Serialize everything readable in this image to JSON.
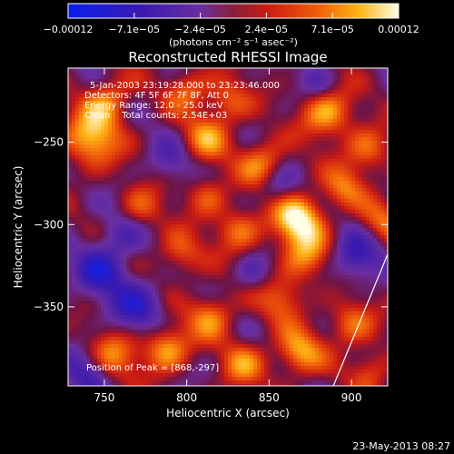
{
  "chart_data": {
    "type": "heatmap",
    "title": "Reconstructed RHESSI Image",
    "xlabel": "Heliocentric X (arcsec)",
    "ylabel": "Heliocentric Y (arcsec)",
    "xlim": [
      728,
      922
    ],
    "ylim": [
      -398,
      -205
    ],
    "x_ticks": [
      750,
      800,
      850,
      900
    ],
    "x_tick_labels": [
      "750",
      "800",
      "850",
      "900"
    ],
    "y_ticks": [
      -250,
      -300,
      -350
    ],
    "y_tick_labels": [
      "−250",
      "−300",
      "−350"
    ],
    "colorbar": {
      "range": [
        -0.00012,
        0.00012
      ],
      "tick_labels": [
        "−0.00012",
        "−7.1e−05",
        "−2.4e−05",
        "2.4e−05",
        "7.1e−05",
        "0.00012"
      ],
      "units": "(photons cm⁻² s⁻¹ asec⁻²)",
      "colormap": "blue-purple-red-orange-yellow-white"
    },
    "annotations": [
      "5-Jan-2003 23:19:28.000 to 23:23:46.000",
      "Detectors: 4F 5F 6F 7F 8F, Att 0",
      "Energy Range: 12.0 - 25.0 keV",
      "Clean    Total counts: 2.54E+03"
    ],
    "peak_label": "Position of Peak = [868,-297]",
    "peak": [
      868,
      -297
    ],
    "limb_line": [
      [
        889,
        -398
      ],
      [
        922,
        -318
      ]
    ],
    "grid": false
  },
  "footer": {
    "timestamp": "23-May-2013 08:27"
  }
}
